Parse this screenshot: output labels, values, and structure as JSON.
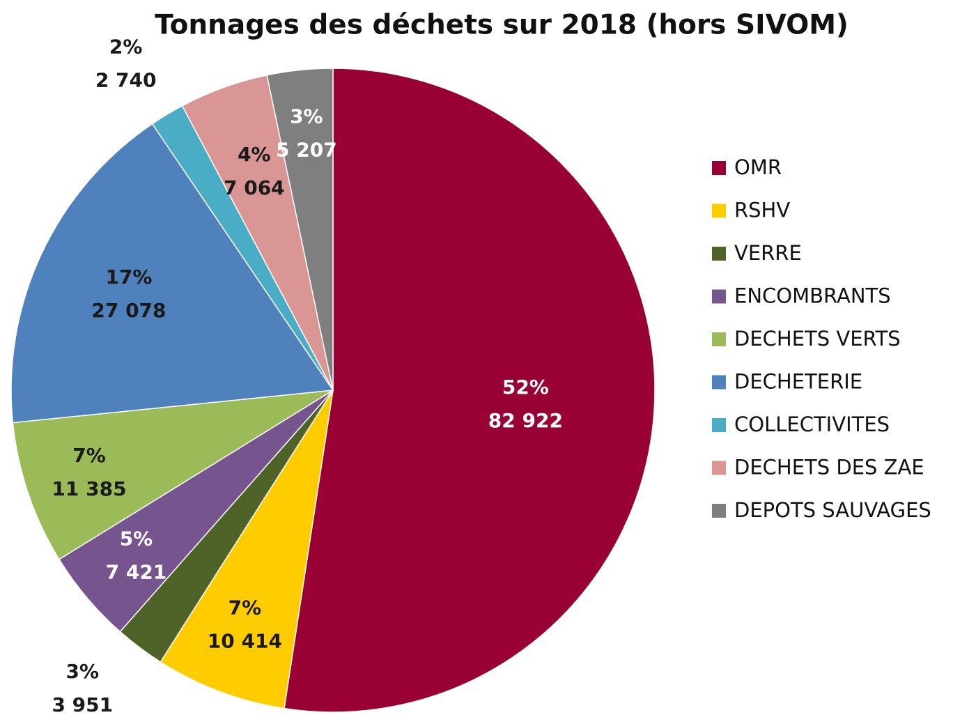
{
  "chart_data": {
    "type": "pie",
    "title": "Tonnages des déchets sur 2018 (hors SIVOM)",
    "categories": [
      "OMR",
      "RSHV",
      "VERRE",
      "ENCOMBRANTS",
      "DECHETS VERTS",
      "DECHETERIE",
      "COLLECTIVITES",
      "DECHETS DES ZAE",
      "DEPOTS SAUVAGES"
    ],
    "values": [
      82922,
      10414,
      3951,
      7421,
      11385,
      27078,
      2740,
      7064,
      5207
    ],
    "value_labels": [
      "82 922",
      "10 414",
      "3 951",
      "7 421",
      "11 385",
      "27 078",
      "2 740",
      "7 064",
      "5 207"
    ],
    "percent_labels": [
      "52%",
      "7%",
      "3%",
      "5%",
      "7%",
      "17%",
      "2%",
      "4%",
      "3%"
    ],
    "colors": [
      "#990033",
      "#ffcc00",
      "#4f6228",
      "#76558f",
      "#9bbb59",
      "#4f81bd",
      "#4bacc6",
      "#d99694",
      "#7f7f7f"
    ],
    "label_colors": [
      "#ffffff",
      "#1a1a1a",
      "#1a1a1a",
      "#ffffff",
      "#1a1a1a",
      "#1a1a1a",
      "#1a1a1a",
      "#1a1a1a",
      "#ffffff"
    ],
    "legend": "right"
  }
}
